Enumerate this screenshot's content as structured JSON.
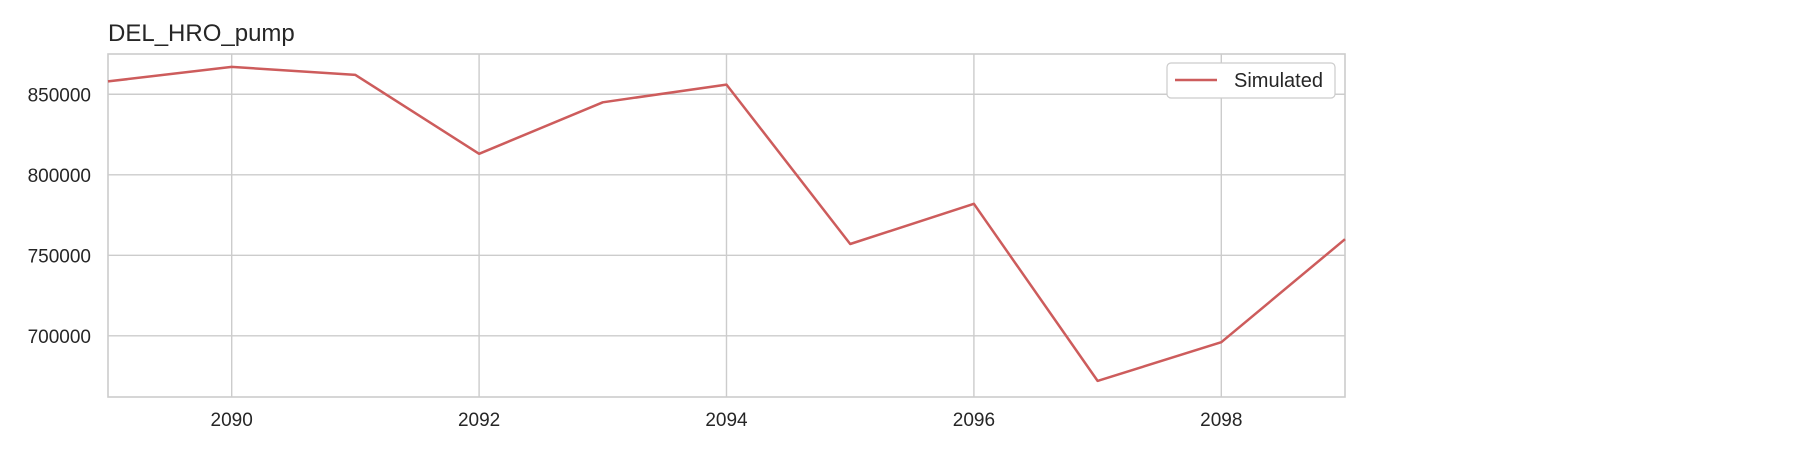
{
  "chart_data": {
    "type": "line",
    "title": "DEL_HRO_pump",
    "xlabel": "",
    "ylabel": "",
    "x": [
      2089,
      2090,
      2091,
      2092,
      2093,
      2094,
      2095,
      2096,
      2097,
      2098,
      2099
    ],
    "series": [
      {
        "name": "Simulated",
        "color": "#cd5c5c",
        "values": [
          858000,
          867000,
          862000,
          813000,
          845000,
          856000,
          757000,
          782000,
          672000,
          696000,
          760000
        ]
      }
    ],
    "xlim": [
      2089,
      2099
    ],
    "ylim": [
      662000,
      875000
    ],
    "x_ticks": [
      2090,
      2092,
      2094,
      2096,
      2098
    ],
    "y_ticks": [
      700000,
      750000,
      800000,
      850000
    ],
    "x_tick_labels": [
      "2090",
      "2092",
      "2094",
      "2096",
      "2098"
    ],
    "y_tick_labels": [
      "700000",
      "750000",
      "800000",
      "850000"
    ],
    "grid": true,
    "legend_position": "top-right",
    "legend_label": "Simulated"
  }
}
